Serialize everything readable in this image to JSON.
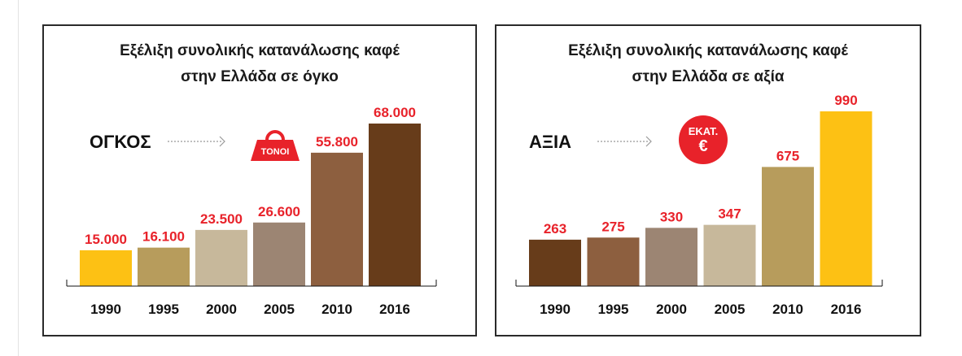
{
  "chart_data": [
    {
      "type": "bar",
      "title_lines": [
        "Εξέλιξη συνολικής κατανάλωσης καφέ",
        "στην Ελλάδα σε όγκο"
      ],
      "metric_label": "ΟΓΚΟΣ",
      "unit_badge": [
        "ΤΟΝΟΙ"
      ],
      "unit_icon": "weight-icon",
      "categories": [
        "1990",
        "1995",
        "2000",
        "2005",
        "2010",
        "2016"
      ],
      "values": [
        15000,
        16100,
        23500,
        26600,
        55800,
        68000
      ],
      "value_labels": [
        "15.000",
        "16.100",
        "23.500",
        "26.600",
        "55.800",
        "68.000"
      ],
      "bar_colors": [
        "#fdc114",
        "#b79c5c",
        "#c7b89b",
        "#9c8573",
        "#8d5f3f",
        "#673c1a"
      ],
      "ylim": [
        0,
        68000
      ]
    },
    {
      "type": "bar",
      "title_lines": [
        "Εξέλιξη συνολικής κατανάλωσης καφέ",
        "στην Ελλάδα σε αξία"
      ],
      "metric_label": "ΑΞΙΑ",
      "unit_badge": [
        "ΕΚΑΤ.",
        "€"
      ],
      "unit_icon": "euro-circle-icon",
      "categories": [
        "1990",
        "1995",
        "2000",
        "2005",
        "2010",
        "2016"
      ],
      "values": [
        263,
        275,
        330,
        347,
        675,
        990
      ],
      "value_labels": [
        "263",
        "275",
        "330",
        "347",
        "675",
        "990"
      ],
      "bar_colors": [
        "#673c1a",
        "#8d5f3f",
        "#9c8573",
        "#c7b89b",
        "#b79c5c",
        "#fdc114"
      ],
      "ylim": [
        0,
        990
      ]
    }
  ],
  "colors": {
    "accent_red": "#e8222a",
    "frame": "#2a2a2a"
  }
}
